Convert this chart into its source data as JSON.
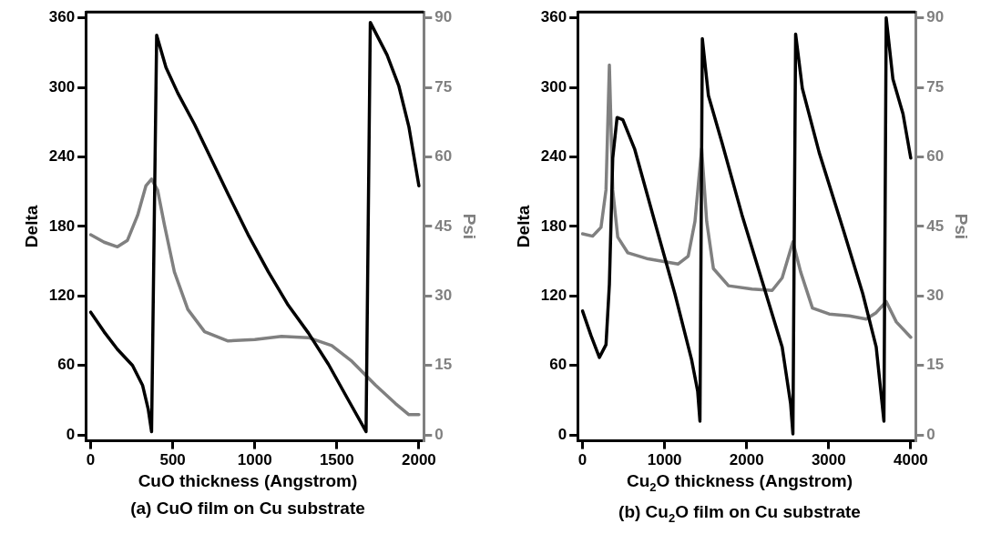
{
  "chart_data": [
    {
      "type": "line",
      "title": "(a) CuO film on Cu substrate",
      "xlabel": "CuO thickness (Angstrom)",
      "ylabel": "Delta",
      "y2label": "Psi",
      "legend": false,
      "marker": "none",
      "line_style": "solid",
      "xlim": [
        -30,
        2030
      ],
      "xticks": [
        0,
        500,
        1000,
        1500,
        2000
      ],
      "ylim": [
        -5,
        365
      ],
      "yticks": [
        0,
        60,
        120,
        180,
        240,
        300,
        360
      ],
      "y2lim": [
        -1.25,
        91.25
      ],
      "y2ticks": [
        0,
        15,
        30,
        45,
        60,
        75,
        90
      ],
      "series": [
        {
          "color": "#000000",
          "x": [
            0,
            82,
            163,
            255,
            316,
            351,
            371,
            402,
            459,
            531,
            633,
            735,
            837,
            959,
            1082,
            1204,
            1327,
            1449,
            1571,
            1678,
            1704,
            1806,
            1878,
            1939,
            2000
          ],
          "values": [
            106,
            89,
            74,
            60,
            43,
            22,
            3,
            345,
            317,
            295,
            268,
            238,
            208,
            173,
            141,
            112,
            88,
            61,
            30,
            3,
            356,
            328,
            301,
            266,
            215
          ]
        },
        {
          "color": "#808080",
          "axis": "y2",
          "x": [
            0,
            82,
            163,
            224,
            286,
            337,
            371,
            408,
            449,
            510,
            592,
            694,
            837,
            1000,
            1163,
            1327,
            1469,
            1592,
            1735,
            1857,
            1939,
            2000
          ],
          "values": [
            43.2,
            41.6,
            40.6,
            42,
            47.4,
            53.8,
            55.2,
            52.8,
            45.4,
            35.2,
            27.1,
            22.3,
            20.3,
            20.6,
            21.3,
            21,
            19.3,
            15.9,
            10.8,
            6.8,
            4.4,
            4.4
          ]
        }
      ]
    },
    {
      "type": "line",
      "title": "(b) Cu$_{2}$O film on Cu substrate",
      "xlabel": "Cu$_{2}$O thickness (Angstrom)",
      "ylabel": "Delta",
      "y2label": "Psi",
      "legend": false,
      "marker": "none",
      "line_style": "solid",
      "xlim": [
        -60,
        4060
      ],
      "xticks": [
        0,
        1000,
        2000,
        3000,
        4000
      ],
      "ylim": [
        -5,
        365
      ],
      "yticks": [
        0,
        60,
        120,
        180,
        240,
        300,
        360
      ],
      "y2lim": [
        -1.25,
        91.25
      ],
      "y2ticks": [
        0,
        15,
        30,
        45,
        60,
        75,
        90
      ],
      "series": [
        {
          "color": "#000000",
          "x": [
            0,
            102,
            205,
            286,
            327,
            368,
            421,
            491,
            634,
            880,
            1125,
            1329,
            1403,
            1431,
            1460,
            1534,
            1697,
            1943,
            2188,
            2433,
            2536,
            2564,
            2597,
            2679,
            2883,
            3170,
            3415,
            3579,
            3673,
            3701,
            3783,
            3906,
            4000
          ],
          "values": [
            107,
            86,
            67,
            78,
            130,
            239,
            274,
            272,
            247,
            184,
            122,
            65,
            38,
            12,
            342,
            293,
            253,
            190,
            133,
            76,
            27,
            1,
            346,
            299,
            244,
            179,
            122,
            76,
            12,
            360,
            307,
            277,
            239
          ]
        },
        {
          "color": "#808080",
          "axis": "y2",
          "x": [
            0,
            123,
            225,
            286,
            327,
            368,
            429,
            552,
            798,
            1166,
            1288,
            1370,
            1452,
            1513,
            1595,
            1779,
            2065,
            2311,
            2433,
            2564,
            2658,
            2802,
            3006,
            3252,
            3456,
            3579,
            3701,
            3824,
            4000
          ],
          "values": [
            43.4,
            42.9,
            44.8,
            52.9,
            79.8,
            52.9,
            42.7,
            39.3,
            38,
            36.9,
            38.6,
            46.1,
            61.8,
            46.1,
            35.9,
            32.2,
            31.5,
            31.2,
            33.9,
            41.7,
            35.2,
            27.4,
            26.1,
            25.7,
            25,
            26.4,
            28.8,
            24.4,
            21.1
          ]
        }
      ]
    }
  ]
}
